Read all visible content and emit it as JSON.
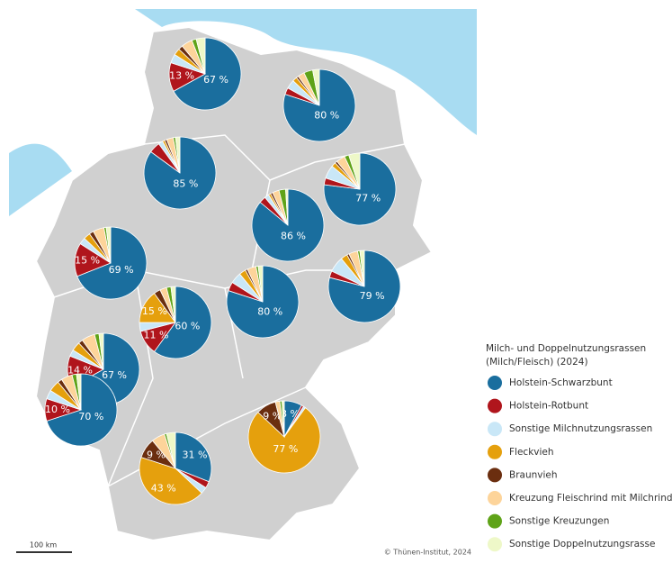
{
  "legend": {
    "title": [
      "Milch- und Doppelnutzungsrassen",
      "(Milch/Fleisch) (2024)"
    ],
    "items": [
      {
        "name": "Holstein-Schwarzbunt",
        "color": "#1a6e9e"
      },
      {
        "name": "Holstein-Rotbunt",
        "color": "#b0151c"
      },
      {
        "name": "Sonstige Milchnutzungsrassen",
        "color": "#c9e7f7"
      },
      {
        "name": "Fleckvieh",
        "color": "#e5a00d"
      },
      {
        "name": "Braunvieh",
        "color": "#6b2e0f"
      },
      {
        "name": "Kreuzung Fleischrind mit Milchrind",
        "color": "#fdd49a"
      },
      {
        "name": "Sonstige Kreuzungen",
        "color": "#5fa318"
      },
      {
        "name": "Sonstige Doppelnutzungsrasse",
        "color": "#eef8c8"
      }
    ]
  },
  "pies": [
    {
      "values": [
        67,
        13,
        4,
        3,
        2,
        5,
        2,
        4
      ],
      "value_labels": [
        "67 %",
        "13 %",
        null,
        null,
        null,
        null,
        null,
        null
      ]
    },
    {
      "values": [
        80,
        3,
        4,
        2,
        1,
        3,
        4,
        3
      ],
      "value_labels": [
        "80 %",
        null,
        null,
        null,
        null,
        null,
        null,
        null
      ]
    },
    {
      "values": [
        85,
        5,
        2,
        1,
        1,
        3,
        1,
        2
      ],
      "value_labels": [
        "85 %",
        null,
        null,
        null,
        null,
        null,
        null,
        null
      ]
    },
    {
      "values": [
        77,
        3,
        6,
        2,
        1,
        4,
        2,
        5
      ],
      "value_labels": [
        "77 %",
        null,
        null,
        null,
        null,
        null,
        null,
        null
      ]
    },
    {
      "values": [
        86,
        3,
        2,
        1,
        1,
        3,
        3,
        1
      ],
      "value_labels": [
        "86 %",
        null,
        null,
        null,
        null,
        null,
        null,
        null
      ]
    },
    {
      "values": [
        69,
        15,
        3,
        3,
        2,
        5,
        1,
        2
      ],
      "value_labels": [
        "69 %",
        "15 %",
        null,
        null,
        null,
        null,
        null,
        null
      ]
    },
    {
      "values": [
        60,
        11,
        4,
        15,
        3,
        3,
        2,
        2
      ],
      "value_labels": [
        "60 %",
        "11 %",
        null,
        "15 %",
        null,
        null,
        null,
        null
      ]
    },
    {
      "values": [
        80,
        4,
        5,
        3,
        1,
        4,
        1,
        2
      ],
      "value_labels": [
        "80 %",
        null,
        null,
        null,
        null,
        null,
        null,
        null
      ]
    },
    {
      "values": [
        79,
        3,
        7,
        3,
        1,
        4,
        1,
        2
      ],
      "value_labels": [
        "79 %",
        null,
        null,
        null,
        null,
        null,
        null,
        null
      ]
    },
    {
      "values": [
        67,
        14,
        3,
        4,
        2,
        6,
        2,
        2
      ],
      "value_labels": [
        "67 %",
        "14 %",
        null,
        null,
        null,
        null,
        null,
        null
      ]
    },
    {
      "values": [
        70,
        10,
        4,
        5,
        2,
        5,
        2,
        2
      ],
      "value_labels": [
        "70 %",
        "10 %",
        null,
        null,
        null,
        null,
        null,
        null
      ]
    },
    {
      "values": [
        31,
        3,
        3,
        43,
        9,
        6,
        1,
        4
      ],
      "value_labels": [
        "31 %",
        null,
        null,
        "43 %",
        "9 %",
        null,
        null,
        null
      ]
    },
    {
      "values": [
        8,
        1,
        1,
        77,
        9,
        2,
        1,
        1
      ],
      "value_labels": [
        "8 %",
        null,
        null,
        "77 %",
        "9 %",
        null,
        null,
        null
      ]
    }
  ],
  "scale_label": "100 km",
  "copyright": "© Thünen-Institut, 2024"
}
